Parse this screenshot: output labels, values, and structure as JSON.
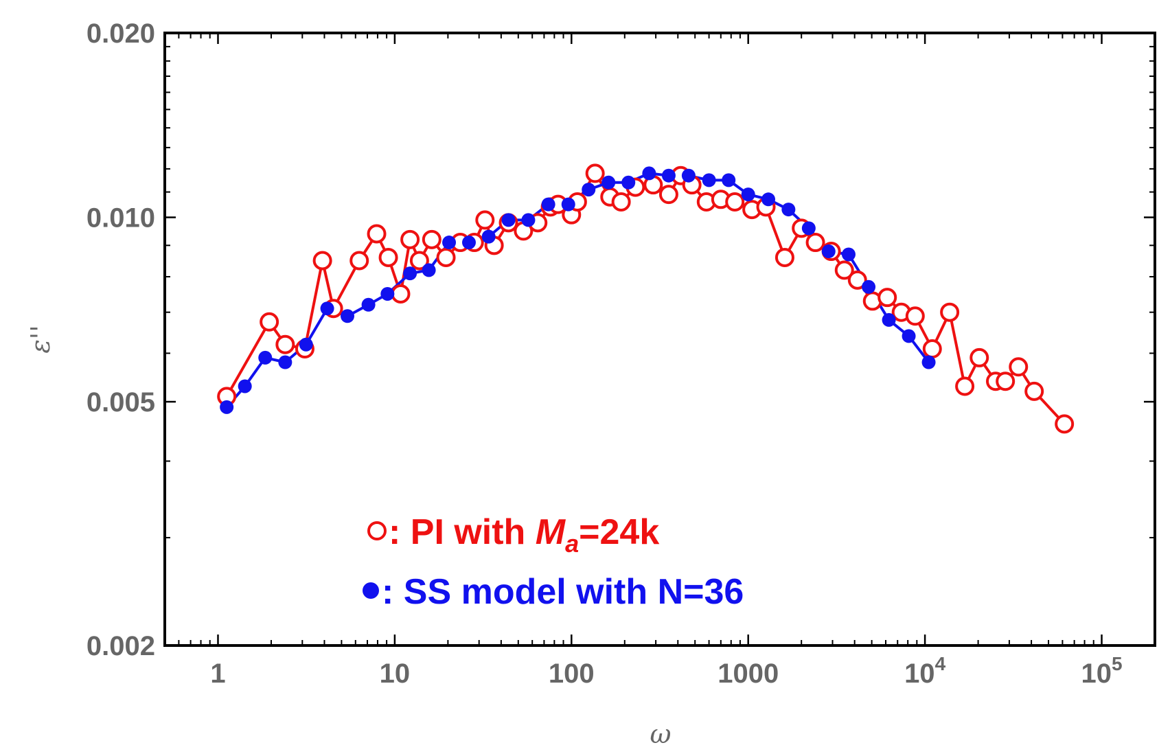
{
  "chart_data": {
    "type": "line",
    "title": "",
    "xlabel": "ω",
    "ylabel": "ε''",
    "xscale": "log",
    "yscale": "log",
    "xlim": [
      0.5,
      200000
    ],
    "ylim": [
      0.002,
      0.02
    ],
    "xticks": [
      {
        "value": 1,
        "label": "1"
      },
      {
        "value": 10,
        "label": "10"
      },
      {
        "value": 100,
        "label": "100"
      },
      {
        "value": 1000,
        "label": "1000"
      },
      {
        "value": 10000,
        "label": "10",
        "exponent": "4"
      },
      {
        "value": 100000,
        "label": "10",
        "exponent": "5"
      }
    ],
    "yticks": [
      {
        "value": 0.002,
        "label": "0.002"
      },
      {
        "value": 0.005,
        "label": "0.005"
      },
      {
        "value": 0.01,
        "label": "0.010"
      },
      {
        "value": 0.02,
        "label": "0.020"
      }
    ],
    "series": [
      {
        "name": "PI with Ma=24k",
        "legend_prefix": ": PI with ",
        "legend_italic": "M",
        "legend_sub": "a",
        "legend_suffix": "=24k",
        "color": "#ee1111",
        "marker": "open-circle",
        "x": [
          1.12,
          1.95,
          2.4,
          3.1,
          3.9,
          4.5,
          6.3,
          7.9,
          9.2,
          10.8,
          12.2,
          13.8,
          16.2,
          19.5,
          23.5,
          28.2,
          32.4,
          36.5,
          44.0,
          53.5,
          64.5,
          76.0,
          84.0,
          100.0,
          108.0,
          136.0,
          165.0,
          191.0,
          230.0,
          290.0,
          355.0,
          415.0,
          480.0,
          580.0,
          700.0,
          840.0,
          1050.0,
          1260.0,
          1610.0,
          2000.0,
          2400.0,
          2950.0,
          3500.0,
          4150.0,
          5050.0,
          6120.0,
          7350.0,
          8800.0,
          11000.0,
          13800.0,
          16800.0,
          20300.0,
          25100.0,
          28500.0,
          33800.0,
          41500.0,
          61500.0
        ],
        "y": [
          0.0051,
          0.00675,
          0.0062,
          0.0061,
          0.0085,
          0.0071,
          0.0085,
          0.0094,
          0.0086,
          0.0075,
          0.0092,
          0.0085,
          0.0092,
          0.0086,
          0.0091,
          0.0091,
          0.0099,
          0.009,
          0.0098,
          0.0095,
          0.0098,
          0.0104,
          0.0105,
          0.0101,
          0.0106,
          0.0118,
          0.0108,
          0.0106,
          0.0112,
          0.0113,
          0.0109,
          0.0117,
          0.0113,
          0.0106,
          0.0107,
          0.0106,
          0.0103,
          0.0104,
          0.0086,
          0.0096,
          0.0091,
          0.0088,
          0.0082,
          0.0079,
          0.0073,
          0.0074,
          0.007,
          0.0069,
          0.0061,
          0.007,
          0.0053,
          0.0059,
          0.0054,
          0.0054,
          0.0057,
          0.0052,
          0.0046
        ]
      },
      {
        "name": "SS model with N=36",
        "legend_text": ": SS model with N=36",
        "color": "#1111ee",
        "marker": "filled-circle",
        "x": [
          1.12,
          1.42,
          1.85,
          2.4,
          3.15,
          4.15,
          5.4,
          7.1,
          9.1,
          12.2,
          15.6,
          20.3,
          26.3,
          34.0,
          44.0,
          57.0,
          74.0,
          96.0,
          125.0,
          162.0,
          210.0,
          275.0,
          355.0,
          460.0,
          600.0,
          775.0,
          1000.0,
          1300.0,
          1690.0,
          2200.0,
          2850.0,
          3700.0,
          4800.0,
          6250.0,
          8100.0,
          10500.0
        ],
        "y": [
          0.0049,
          0.0053,
          0.0059,
          0.0058,
          0.0062,
          0.0071,
          0.0069,
          0.0072,
          0.0075,
          0.0081,
          0.0082,
          0.0091,
          0.0091,
          0.0093,
          0.0099,
          0.0099,
          0.0105,
          0.0105,
          0.0111,
          0.0114,
          0.0114,
          0.0118,
          0.0117,
          0.0117,
          0.0115,
          0.0115,
          0.0109,
          0.0107,
          0.0103,
          0.0096,
          0.0088,
          0.0087,
          0.0077,
          0.0068,
          0.0064,
          0.0058
        ]
      }
    ]
  }
}
